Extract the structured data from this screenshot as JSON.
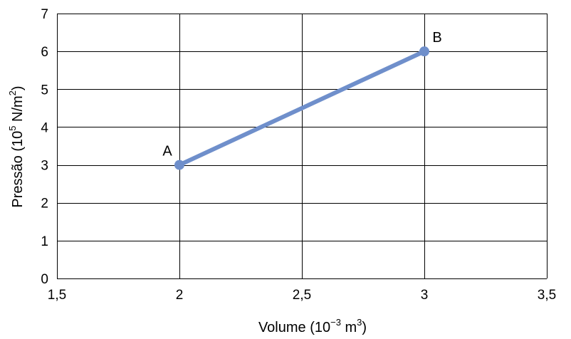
{
  "chart_data": {
    "type": "line",
    "x_ticks": [
      "1,5",
      "2",
      "2,5",
      "3",
      "3,5"
    ],
    "y_ticks": [
      "0",
      "1",
      "2",
      "3",
      "4",
      "5",
      "6",
      "7"
    ],
    "xlim": [
      1.5,
      3.5
    ],
    "ylim": [
      0,
      7
    ],
    "grid": true,
    "xlabel": {
      "main": "Volume (10",
      "exp": "−3",
      "mid": " m",
      "exp2": "3",
      "end": ")"
    },
    "ylabel": {
      "main": "Pressão (10",
      "exp": "5",
      "mid": " N/m",
      "exp2": "2",
      "end": ")"
    },
    "series": [
      {
        "color": "#6f8fcb",
        "points": [
          {
            "label": "A",
            "x": 2,
            "y": 3
          },
          {
            "label": "B",
            "x": 3,
            "y": 6
          }
        ]
      }
    ]
  }
}
